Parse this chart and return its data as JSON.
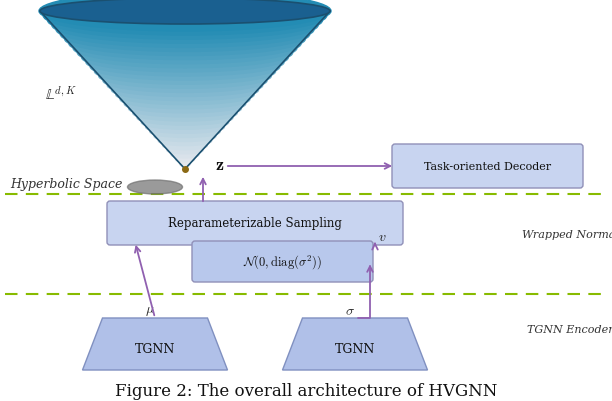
{
  "title": "Figure 2: The overall architecture of HVGNN",
  "title_fontsize": 12,
  "bg_color": "#ffffff",
  "dashed_line_color": "#88bb00",
  "arrow_color": "#9060b0",
  "box_fill_light": "#c8d4f0",
  "box_fill_norm": "#b8c8ec",
  "tgnn_fill": "#b0c0e8",
  "label_reparameterizable": "Reparameterizable Sampling",
  "label_normal": "$\\mathcal{N}(0,\\mathrm{diag}(\\sigma^2))$",
  "label_tgnn": "TGNN",
  "label_decoder": "Task-oriented Decoder",
  "label_z": "$\\mathbf{z}$",
  "label_mu": "$\\mu$",
  "label_sigma": "$\\sigma$",
  "label_v": "$v$",
  "label_hyperbolic": "Hyperbolic Space",
  "label_wrapped": "Wrapped Normal",
  "label_tgnn_encoder": "TGNN Encoder",
  "label_Ldk": "$\\mathbb{L}^{d,K}$"
}
